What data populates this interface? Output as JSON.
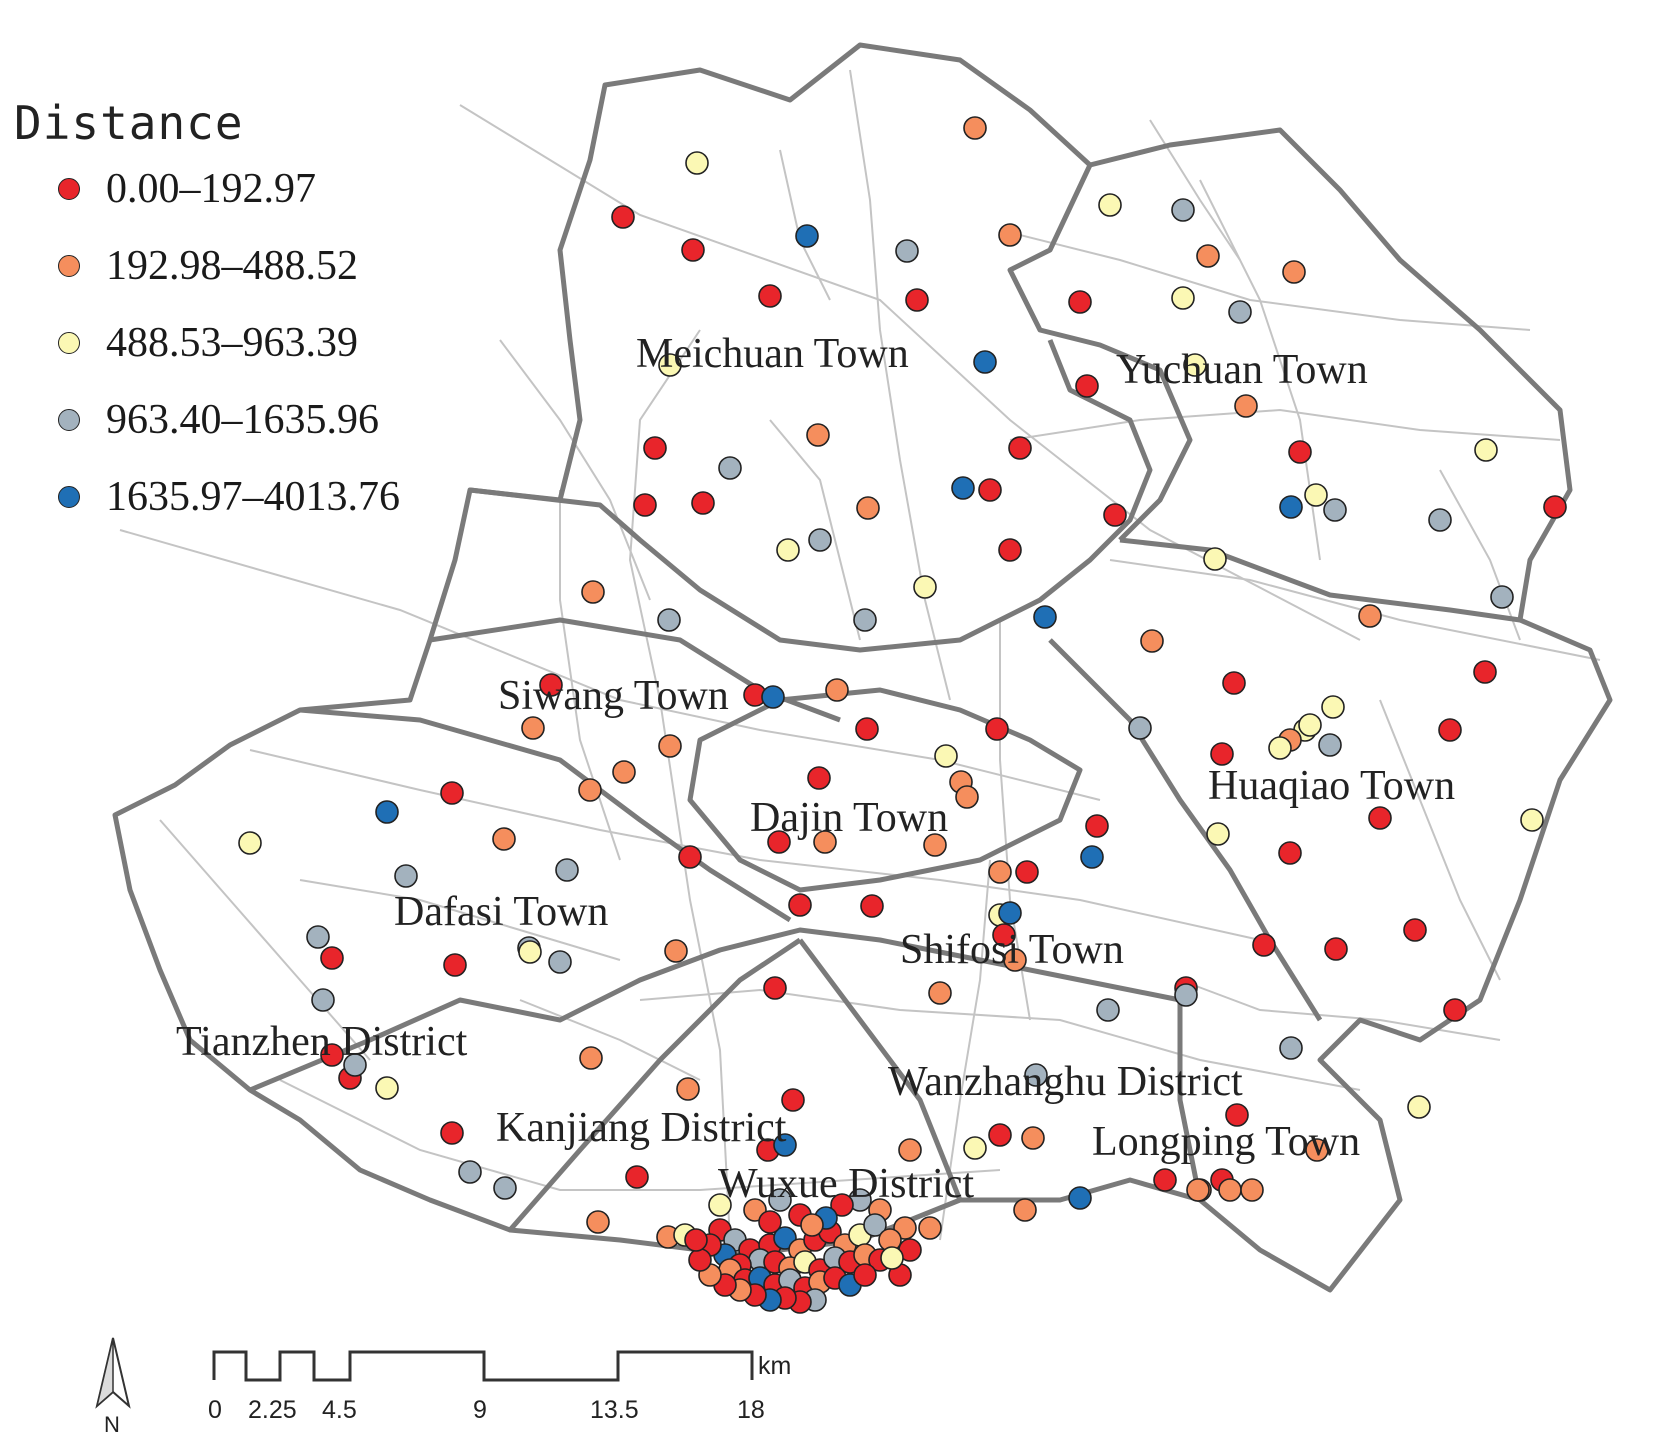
{
  "legend": {
    "title": "Distance",
    "classes": [
      {
        "label": "0.00–192.97",
        "color": "#e8252b"
      },
      {
        "label": "192.98–488.52",
        "color": "#f58e5d"
      },
      {
        "label": "488.53–963.39",
        "color": "#fbf8b4"
      },
      {
        "label": "963.40–1635.96",
        "color": "#a3b2be"
      },
      {
        "label": "1635.97–4013.76",
        "color": "#1f6fb5"
      }
    ]
  },
  "places": [
    "Meichuan Town",
    "Yuchuan Town",
    "Siwang Town",
    "Dajin Town",
    "Huaqiao Town",
    "Dafasi Town",
    "Shifosi Town",
    "Tianzhen District",
    "Wanzhanghu District",
    "Kanjiang District",
    "Longping Town",
    "Wuxue District"
  ],
  "scale_bar": {
    "unit": "km",
    "ticks": [
      "0",
      "2.25",
      "4.5",
      "9",
      "13.5",
      "18"
    ]
  },
  "north_arrow": {
    "label": "N",
    "icon": "north-arrow-icon"
  }
}
